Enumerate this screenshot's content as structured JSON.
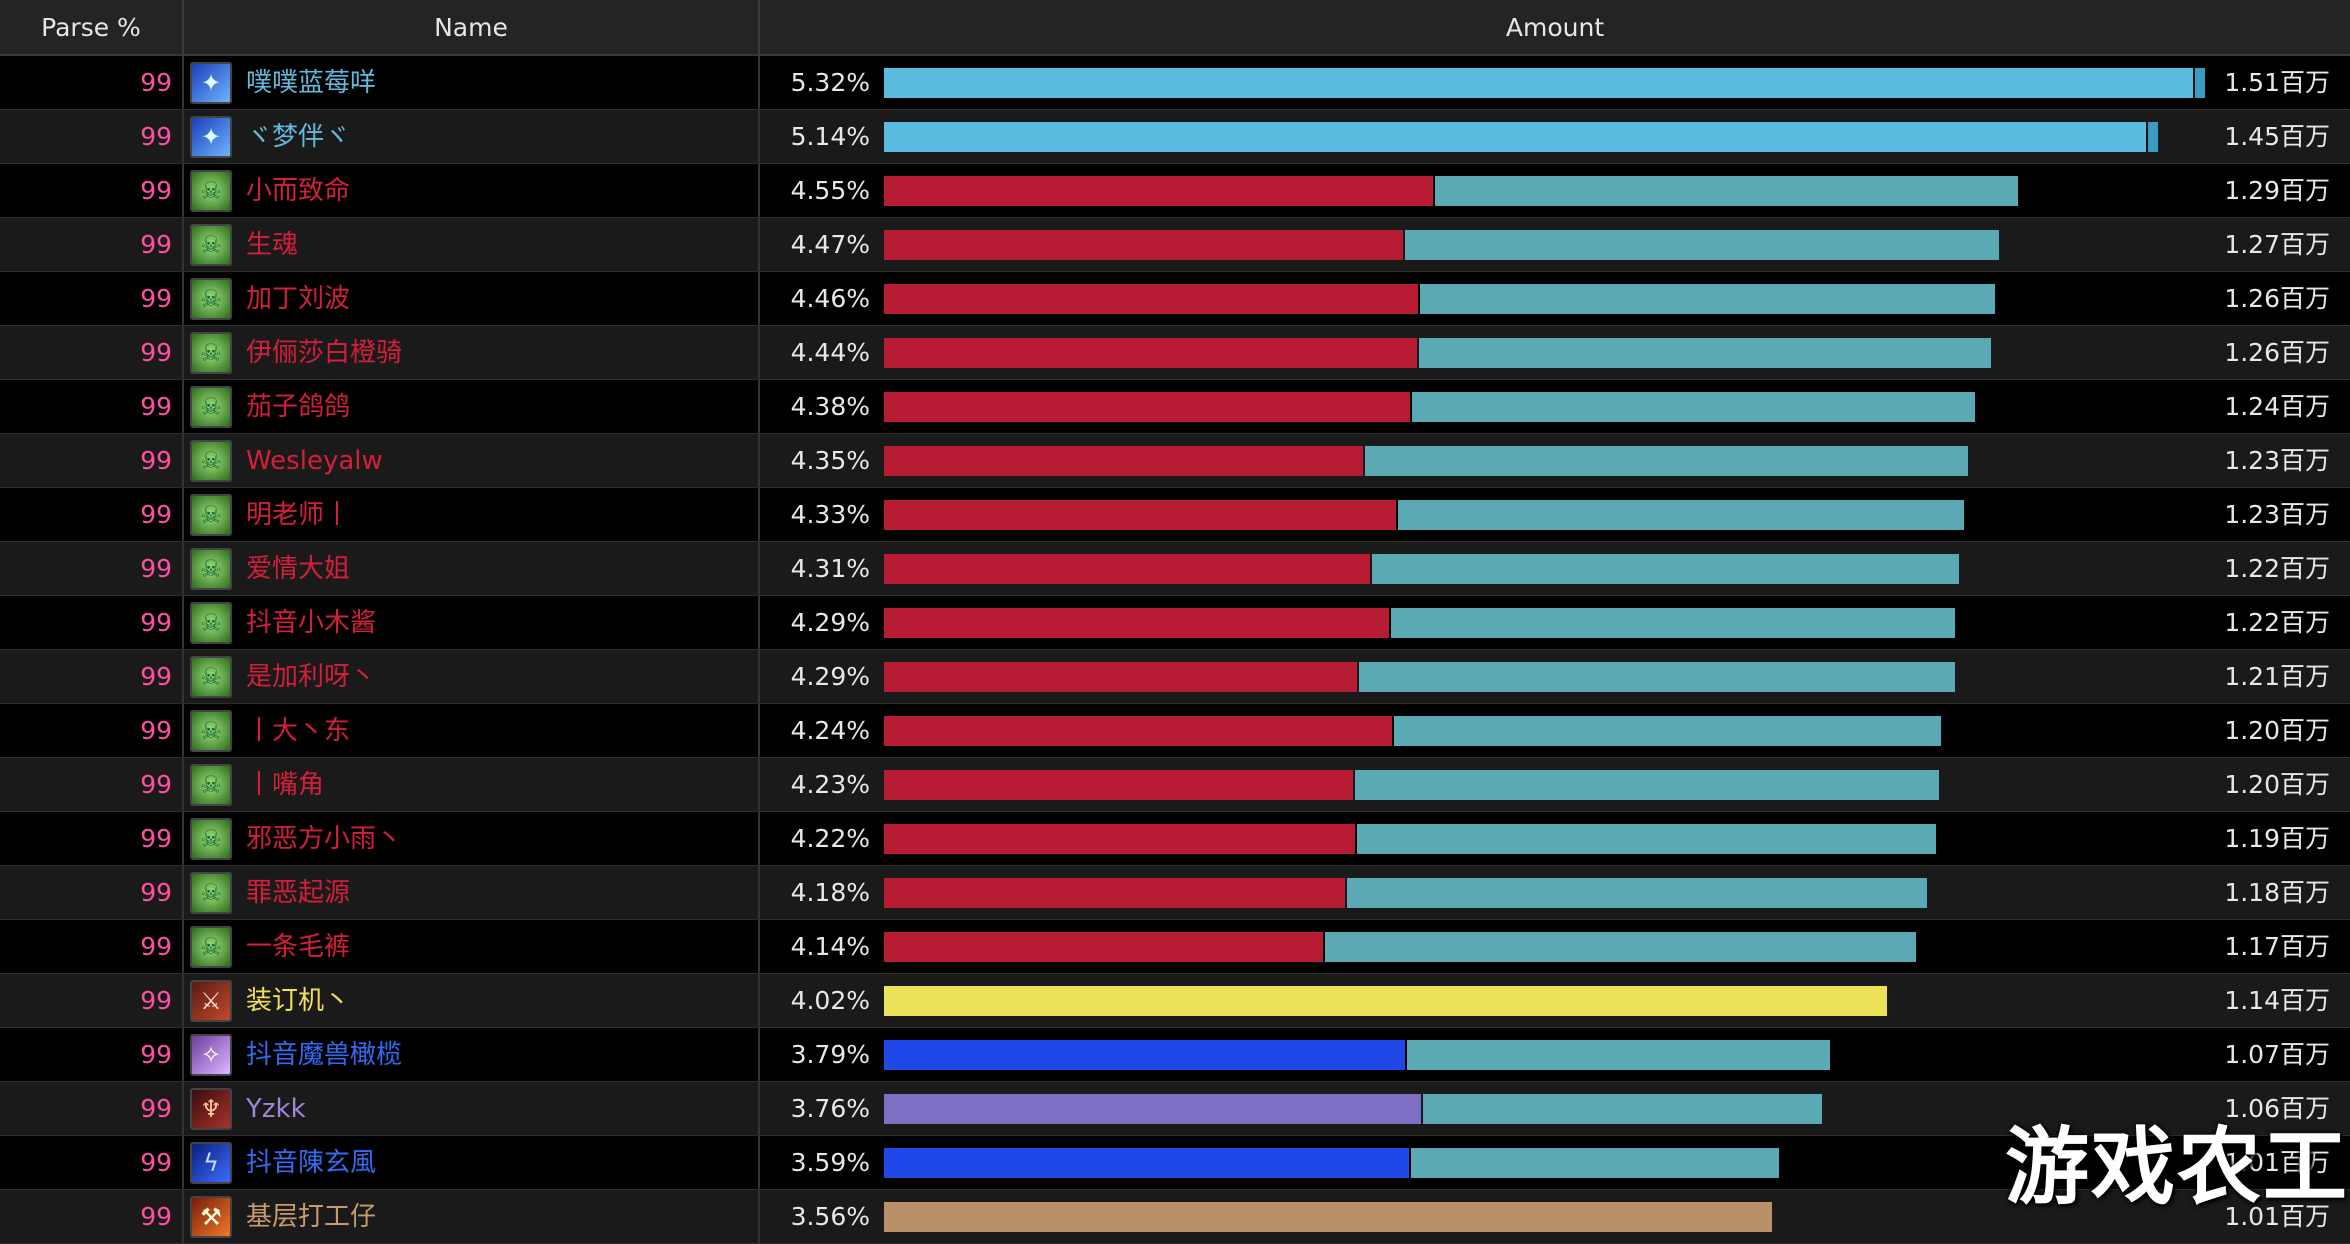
{
  "header": {
    "parse": "Parse %",
    "name": "Name",
    "amount": "Amount"
  },
  "colors": {
    "shaman": "#62b9dc",
    "shaman_bar": "#5bbcdf",
    "dk": "#d41f3b",
    "dk_bar": "#b81c34",
    "dk_secondary": "#5aa9b5",
    "rogue": "#f2e05a",
    "rogue_bar": "#ede35b",
    "blue": "#2f6cf2",
    "blue_bar": "#2047e8",
    "purple": "#9f86d8",
    "purple_bar": "#7e6ec4",
    "warrior": "#c89b6d",
    "warrior_bar": "#b8906a",
    "parse": "#ff4fa3"
  },
  "rows": [
    {
      "parse": "99",
      "name": "噗噗蓝莓咩",
      "pct": "5.32%",
      "amount": "1.51百万",
      "icon": "shaman-totem-icon",
      "cls": "shaman",
      "fill": 0.993,
      "split": null
    },
    {
      "parse": "99",
      "name": "ヾ梦伴ヾ",
      "pct": "5.14%",
      "amount": "1.45百万",
      "icon": "shaman-totem-icon",
      "cls": "shaman",
      "fill": 0.958,
      "split": null
    },
    {
      "parse": "99",
      "name": "小而致命",
      "pct": "4.55%",
      "amount": "1.29百万",
      "icon": "skull-icon",
      "cls": "dk",
      "fill": 0.853,
      "split": 0.484
    },
    {
      "parse": "99",
      "name": "生魂",
      "pct": "4.47%",
      "amount": "1.27百万",
      "icon": "skull-icon",
      "cls": "dk",
      "fill": 0.838,
      "split": 0.466
    },
    {
      "parse": "99",
      "name": "加丁刘波",
      "pct": "4.46%",
      "amount": "1.26百万",
      "icon": "skull-icon",
      "cls": "dk",
      "fill": 0.835,
      "split": 0.481
    },
    {
      "parse": "99",
      "name": "伊俪莎白橙骑",
      "pct": "4.44%",
      "amount": "1.26百万",
      "icon": "skull-icon",
      "cls": "dk",
      "fill": 0.832,
      "split": 0.482
    },
    {
      "parse": "99",
      "name": "茄子鸽鸽",
      "pct": "4.38%",
      "amount": "1.24百万",
      "icon": "skull-icon",
      "cls": "dk",
      "fill": 0.82,
      "split": 0.482
    },
    {
      "parse": "99",
      "name": "Wesleyalw",
      "pct": "4.35%",
      "amount": "1.23百万",
      "icon": "skull-icon",
      "cls": "dk",
      "fill": 0.815,
      "split": 0.442
    },
    {
      "parse": "99",
      "name": "明老师丨",
      "pct": "4.33%",
      "amount": "1.23百万",
      "icon": "skull-icon",
      "cls": "dk",
      "fill": 0.812,
      "split": 0.474
    },
    {
      "parse": "99",
      "name": "爱情大姐",
      "pct": "4.31%",
      "amount": "1.22百万",
      "icon": "skull-icon",
      "cls": "dk",
      "fill": 0.808,
      "split": 0.452
    },
    {
      "parse": "99",
      "name": "抖音小木酱",
      "pct": "4.29%",
      "amount": "1.22百万",
      "icon": "skull-icon",
      "cls": "dk",
      "fill": 0.805,
      "split": 0.472
    },
    {
      "parse": "99",
      "name": "是加利呀丶",
      "pct": "4.29%",
      "amount": "1.21百万",
      "icon": "skull-icon",
      "cls": "dk",
      "fill": 0.805,
      "split": 0.442
    },
    {
      "parse": "99",
      "name": "丨大丶东",
      "pct": "4.24%",
      "amount": "1.20百万",
      "icon": "skull-icon",
      "cls": "dk",
      "fill": 0.795,
      "split": 0.48
    },
    {
      "parse": "99",
      "name": "丨嘴角",
      "pct": "4.23%",
      "amount": "1.20百万",
      "icon": "skull-icon",
      "cls": "dk",
      "fill": 0.793,
      "split": 0.445
    },
    {
      "parse": "99",
      "name": "邪恶方小雨丶",
      "pct": "4.22%",
      "amount": "1.19百万",
      "icon": "skull-icon",
      "cls": "dk",
      "fill": 0.791,
      "split": 0.448
    },
    {
      "parse": "99",
      "name": "罪恶起源",
      "pct": "4.18%",
      "amount": "1.18百万",
      "icon": "skull-icon",
      "cls": "dk",
      "fill": 0.784,
      "split": 0.442
    },
    {
      "parse": "99",
      "name": "一条毛裤",
      "pct": "4.14%",
      "amount": "1.17百万",
      "icon": "skull-icon",
      "cls": "dk",
      "fill": 0.776,
      "split": 0.425
    },
    {
      "parse": "99",
      "name": "装订机丶",
      "pct": "4.02%",
      "amount": "1.14百万",
      "icon": "rogue-portrait-icon",
      "cls": "rogue",
      "fill": 0.754,
      "split": null
    },
    {
      "parse": "99",
      "name": "抖音魔兽橄榄",
      "pct": "3.79%",
      "amount": "1.07百万",
      "icon": "mage-portrait-icon",
      "cls": "blue",
      "fill": 0.711,
      "split": 0.551
    },
    {
      "parse": "99",
      "name": "Yzkk",
      "pct": "3.76%",
      "amount": "1.06百万",
      "icon": "demon-portrait-icon",
      "cls": "purple",
      "fill": 0.705,
      "split": 0.573
    },
    {
      "parse": "99",
      "name": "抖音陳玄風",
      "pct": "3.59%",
      "amount": "1.01百万",
      "icon": "lightning-icon",
      "cls": "blue",
      "fill": 0.673,
      "split": 0.587
    },
    {
      "parse": "99",
      "name": "基层打工仔",
      "pct": "3.56%",
      "amount": "1.01百万",
      "icon": "warrior-portrait-icon",
      "cls": "warrior",
      "fill": 0.668,
      "split": null
    }
  ],
  "watermark": "游戏农工"
}
